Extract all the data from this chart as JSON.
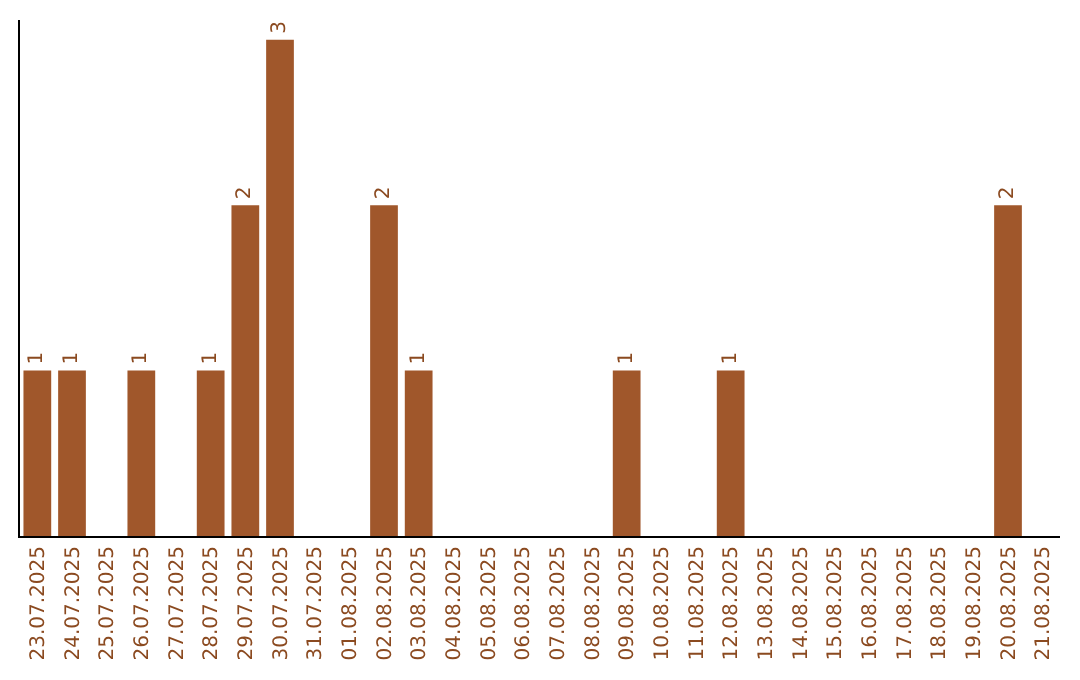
{
  "chart_data": {
    "type": "bar",
    "categories": [
      "23.07.2025",
      "24.07.2025",
      "25.07.2025",
      "26.07.2025",
      "27.07.2025",
      "28.07.2025",
      "29.07.2025",
      "30.07.2025",
      "31.07.2025",
      "01.08.2025",
      "02.08.2025",
      "03.08.2025",
      "04.08.2025",
      "05.08.2025",
      "06.08.2025",
      "07.08.2025",
      "08.08.2025",
      "09.08.2025",
      "10.08.2025",
      "11.08.2025",
      "12.08.2025",
      "13.08.2025",
      "14.08.2025",
      "15.08.2025",
      "16.08.2025",
      "17.08.2025",
      "18.08.2025",
      "19.08.2025",
      "20.08.2025",
      "21.08.2025"
    ],
    "values": [
      1,
      1,
      0,
      1,
      0,
      1,
      2,
      3,
      0,
      0,
      2,
      1,
      0,
      0,
      0,
      0,
      0,
      1,
      0,
      0,
      1,
      0,
      0,
      0,
      0,
      0,
      0,
      0,
      2,
      0
    ],
    "value_labels": [
      "1",
      "1",
      null,
      "1",
      null,
      "1",
      "2",
      "3",
      null,
      null,
      "2",
      "1",
      null,
      null,
      null,
      null,
      null,
      "1",
      null,
      null,
      "1",
      null,
      null,
      null,
      null,
      null,
      null,
      null,
      "2",
      null
    ],
    "color": "#a0572b",
    "grid": false,
    "legend": false
  }
}
